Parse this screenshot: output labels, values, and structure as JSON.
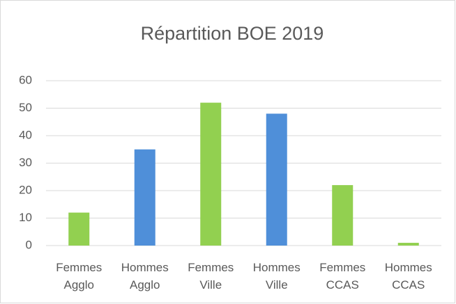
{
  "chart_data": {
    "type": "bar",
    "title": "Répartition BOE 2019",
    "categories": [
      "Femmes Agglo",
      "Hommes Agglo",
      "Femmes Ville",
      "Hommes Ville",
      "Femmes CCAS",
      "Hommes CCAS"
    ],
    "values": [
      12,
      35,
      52,
      48,
      22,
      1
    ],
    "colors": [
      "#92d050",
      "#4f8fd9",
      "#92d050",
      "#4f8fd9",
      "#92d050",
      "#92d050"
    ],
    "ylim": [
      0,
      60
    ],
    "yticks": [
      0,
      10,
      20,
      30,
      40,
      50,
      60
    ],
    "grid": true
  }
}
